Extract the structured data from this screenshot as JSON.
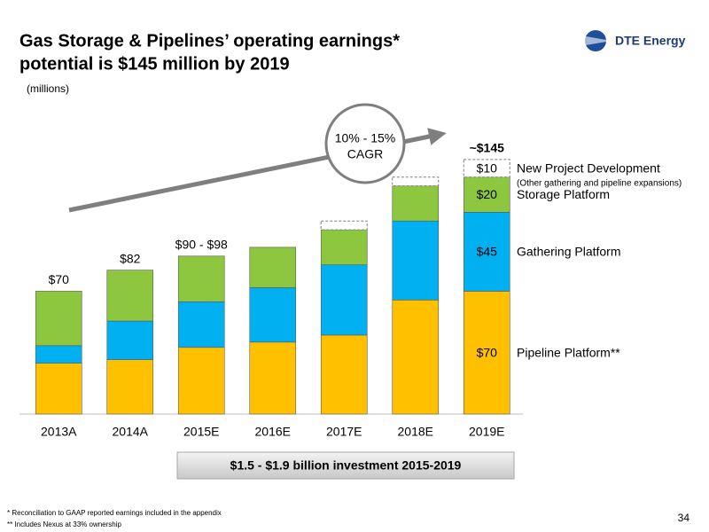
{
  "header": {
    "title_line1": "Gas Storage & Pipelines’ operating earnings*",
    "title_line2": "potential is $145 million by 2019",
    "logo": "DTE Energy"
  },
  "chart_data": {
    "type": "stacked_bar",
    "unit_label": "(millions)",
    "categories": [
      "2013A",
      "2014A",
      "2015E",
      "2016E",
      "2017E",
      "2018E",
      "2019E"
    ],
    "series": [
      {
        "name": "Pipeline Platform**",
        "color": "#FFC000",
        "values": [
          29,
          31,
          38,
          41,
          45,
          65,
          70
        ],
        "value_labels": [
          null,
          null,
          null,
          null,
          null,
          null,
          "$70"
        ]
      },
      {
        "name": "Gathering Platform",
        "color": "#00B0F0",
        "values": [
          10,
          22,
          26,
          31,
          40,
          45,
          45
        ],
        "value_labels": [
          null,
          null,
          null,
          null,
          null,
          null,
          "$45"
        ]
      },
      {
        "name": "Storage Platform",
        "color": "#8DC63F",
        "values": [
          31,
          29,
          26,
          23,
          20,
          20,
          20
        ],
        "value_labels": [
          null,
          null,
          null,
          null,
          null,
          null,
          "$20"
        ]
      },
      {
        "name": "New Project Development",
        "description": "(Other gathering and pipeline expansions)",
        "color": "#ffffff",
        "style": "dashed",
        "values": [
          null,
          null,
          null,
          null,
          5,
          5,
          10
        ],
        "value_labels": [
          null,
          null,
          null,
          null,
          null,
          null,
          "$10"
        ]
      }
    ],
    "total_labels": [
      "$70",
      "$82",
      "$90 - $98",
      null,
      null,
      null,
      "~$145"
    ],
    "ylim": [
      0,
      150
    ],
    "growth_callout": {
      "line1": "10% - 15%",
      "line2": "CAGR"
    },
    "investment_note": "$1.5 - $1.9 billion investment 2015-2019"
  },
  "footer": {
    "note1": "*  Reconciliation to GAAP reported earnings included in the appendix",
    "note2": "**  Includes Nexus at 33% ownership",
    "page": "34"
  }
}
